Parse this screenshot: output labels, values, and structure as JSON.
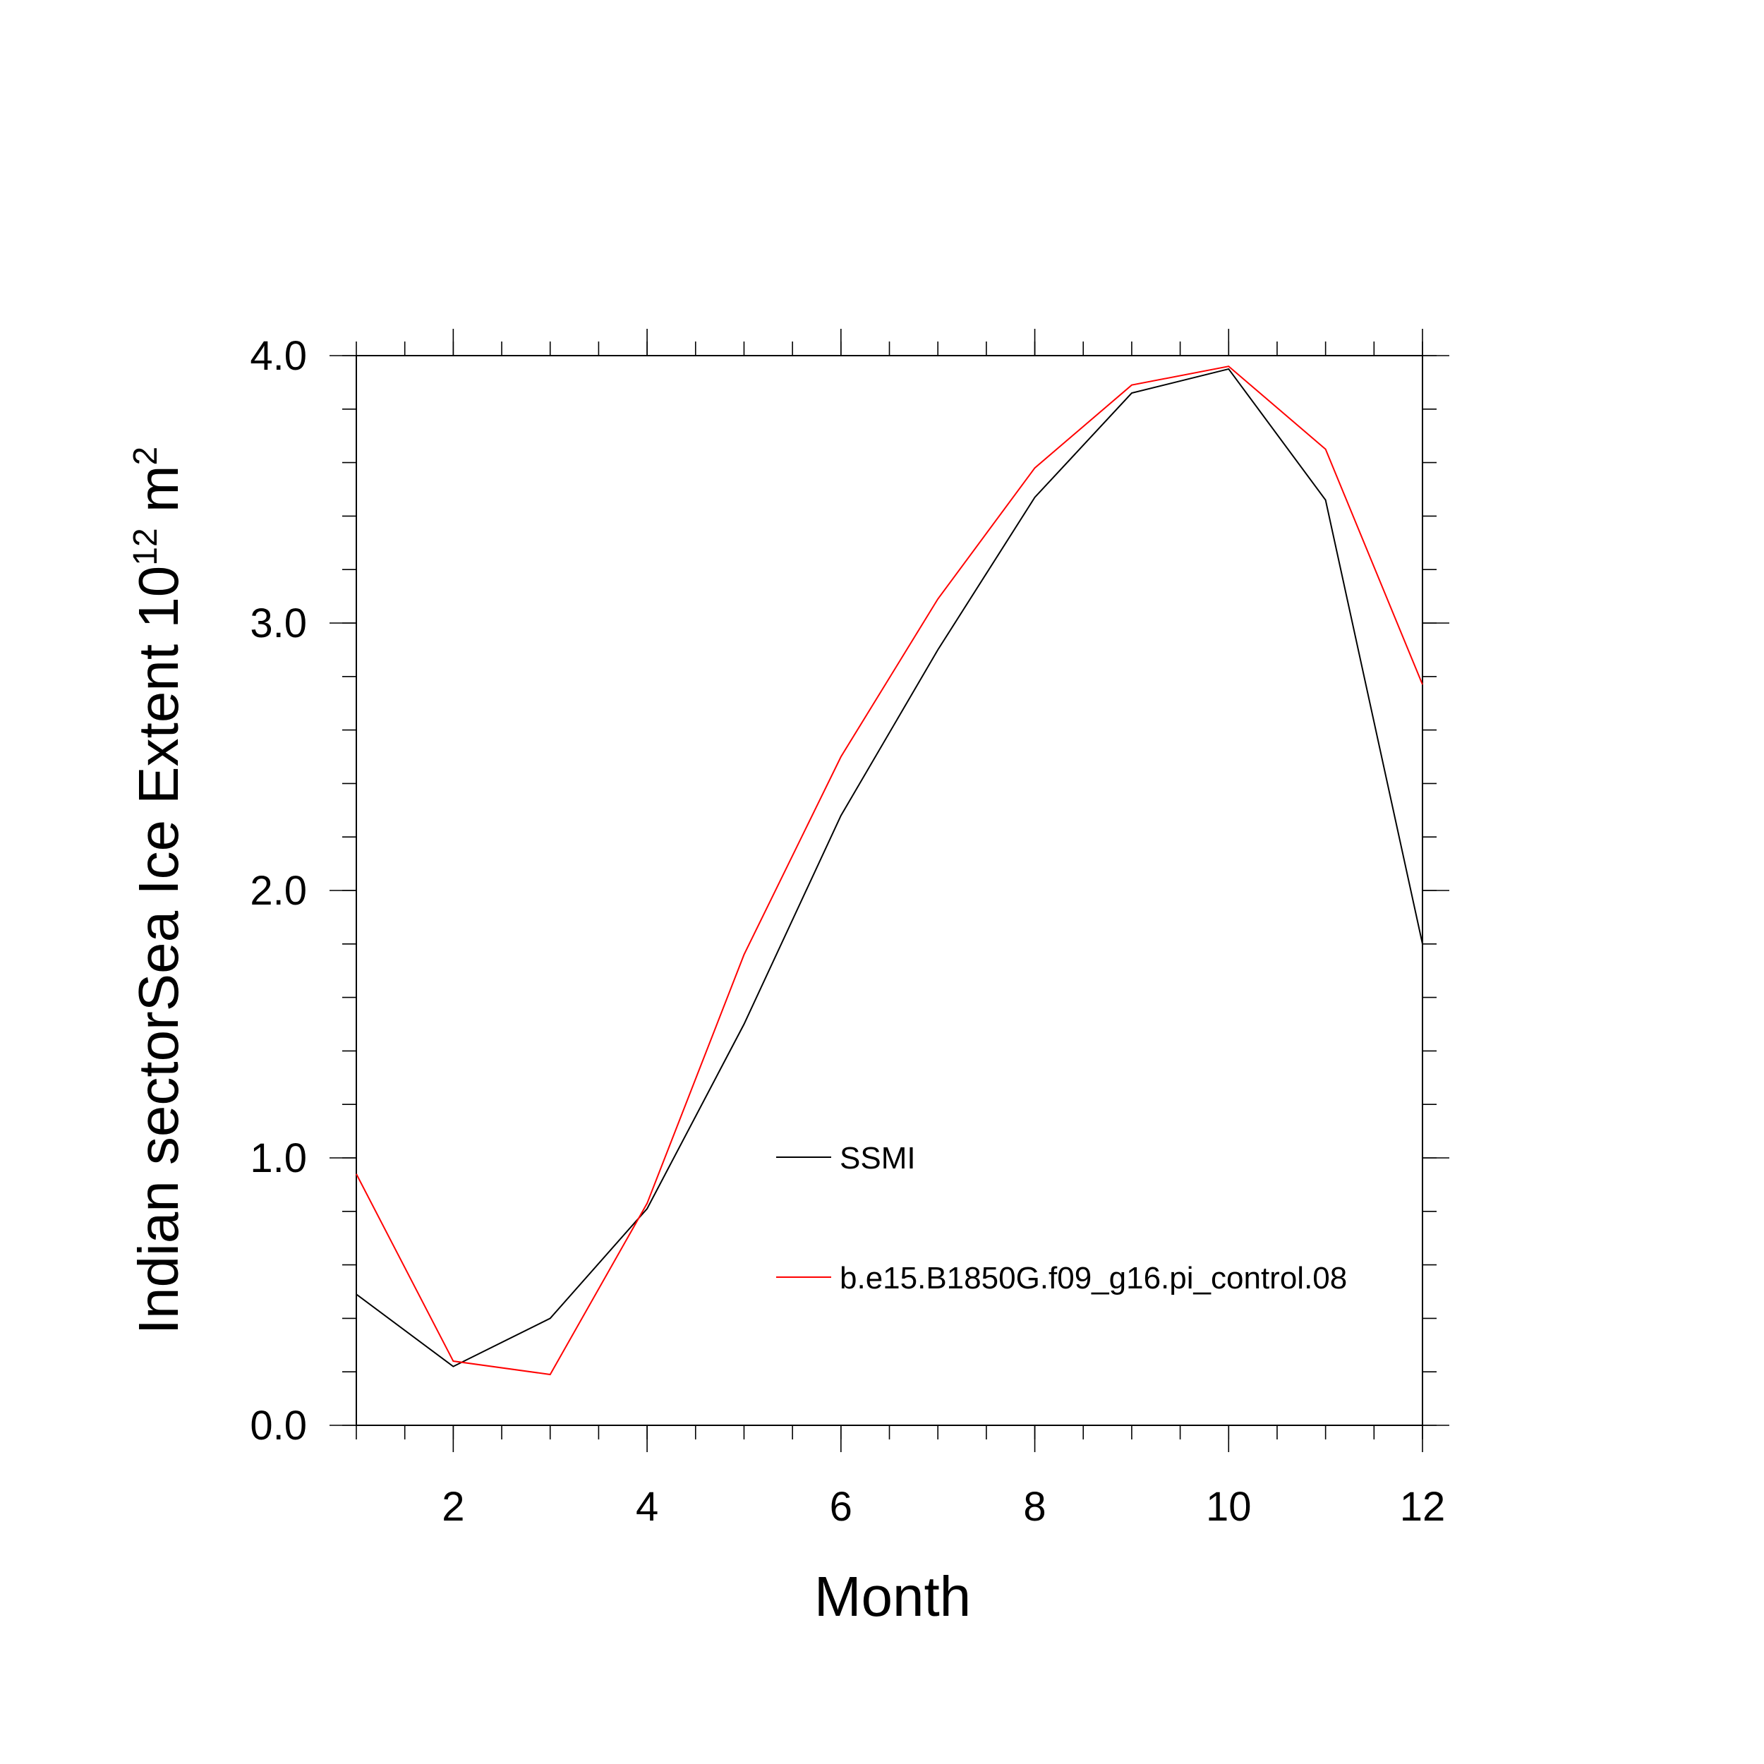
{
  "chart_data": {
    "type": "line",
    "title": "",
    "xlabel": "Month",
    "ylabel": {
      "main": "Indian sectorSea Ice Extent 10",
      "sup1": "12",
      "mid": " m",
      "sup2": "2"
    },
    "xlim": [
      1,
      12
    ],
    "ylim": [
      0,
      4
    ],
    "xticks": [
      2,
      4,
      6,
      8,
      10,
      12
    ],
    "xtick_labels": [
      "2",
      "4",
      "6",
      "8",
      "10",
      "12"
    ],
    "yticks": [
      0,
      1,
      2,
      3,
      4
    ],
    "ytick_labels": [
      "0.0",
      "1.0",
      "2.0",
      "3.0",
      "4.0"
    ],
    "grid": false,
    "legend_position": "center-right",
    "x": [
      1,
      2,
      3,
      4,
      5,
      6,
      7,
      8,
      9,
      10,
      11,
      12
    ],
    "series": [
      {
        "name": "SSMI",
        "color": "#000000",
        "values": [
          0.49,
          0.22,
          0.4,
          0.81,
          1.5,
          2.28,
          2.9,
          3.47,
          3.86,
          3.95,
          3.46,
          1.8
        ]
      },
      {
        "name": "b.e15.B1850G.f09_g16.pi_control.08",
        "color": "#ff0000",
        "values": [
          0.94,
          0.24,
          0.19,
          0.83,
          1.76,
          2.5,
          3.09,
          3.58,
          3.89,
          3.96,
          3.65,
          2.77
        ]
      }
    ]
  }
}
